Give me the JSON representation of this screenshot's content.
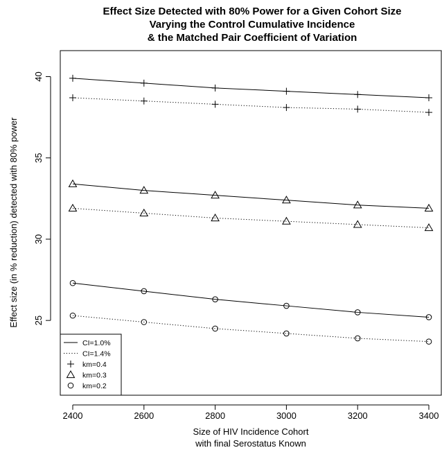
{
  "chart_data": {
    "type": "line",
    "title": [
      "Effect Size Detected with 80% Power for a Given Cohort Size",
      "Varying the Control Cumulative Incidence",
      "& the Matched Pair Coefficient of Variation"
    ],
    "xlabel": [
      "Size of HIV Incidence Cohort",
      "with final Serostatus Known"
    ],
    "ylabel": "Effect size (in % reduction) detected with 80% power",
    "xlim": [
      2365,
      3435
    ],
    "ylim": [
      20.4,
      41.6
    ],
    "xticks": [
      2400,
      2600,
      2800,
      3000,
      3200,
      3400
    ],
    "yticks": [
      25,
      30,
      35,
      40
    ],
    "grid": false,
    "legend_position": "bottom-left",
    "legend": [
      {
        "label": "CI=1.0%",
        "kind": "line",
        "dash": "solid"
      },
      {
        "label": "CI=1.4%",
        "kind": "line",
        "dash": "dotted"
      },
      {
        "label": "km=0.4",
        "kind": "marker",
        "marker": "plus"
      },
      {
        "label": "km=0.3",
        "kind": "marker",
        "marker": "triangle"
      },
      {
        "label": "km=0.2",
        "kind": "marker",
        "marker": "circle"
      }
    ],
    "x": [
      2400,
      2600,
      2800,
      3000,
      3200,
      3400
    ],
    "series": [
      {
        "ci": "CI=1.0%",
        "km": "km=0.4",
        "dash": "solid",
        "marker": "plus",
        "values": [
          39.9,
          39.6,
          39.3,
          39.1,
          38.9,
          38.7
        ]
      },
      {
        "ci": "CI=1.4%",
        "km": "km=0.4",
        "dash": "dotted",
        "marker": "plus",
        "values": [
          38.7,
          38.5,
          38.3,
          38.1,
          38.0,
          37.8
        ]
      },
      {
        "ci": "CI=1.0%",
        "km": "km=0.3",
        "dash": "solid",
        "marker": "triangle",
        "values": [
          33.4,
          33.0,
          32.7,
          32.4,
          32.1,
          31.9
        ]
      },
      {
        "ci": "CI=1.4%",
        "km": "km=0.3",
        "dash": "dotted",
        "marker": "triangle",
        "values": [
          31.9,
          31.6,
          31.3,
          31.1,
          30.9,
          30.7
        ]
      },
      {
        "ci": "CI=1.0%",
        "km": "km=0.2",
        "dash": "solid",
        "marker": "circle",
        "values": [
          27.3,
          26.8,
          26.3,
          25.9,
          25.5,
          25.2
        ]
      },
      {
        "ci": "CI=1.4%",
        "km": "km=0.2",
        "dash": "dotted",
        "marker": "circle",
        "values": [
          25.3,
          24.9,
          24.5,
          24.2,
          23.9,
          23.7
        ]
      }
    ]
  }
}
